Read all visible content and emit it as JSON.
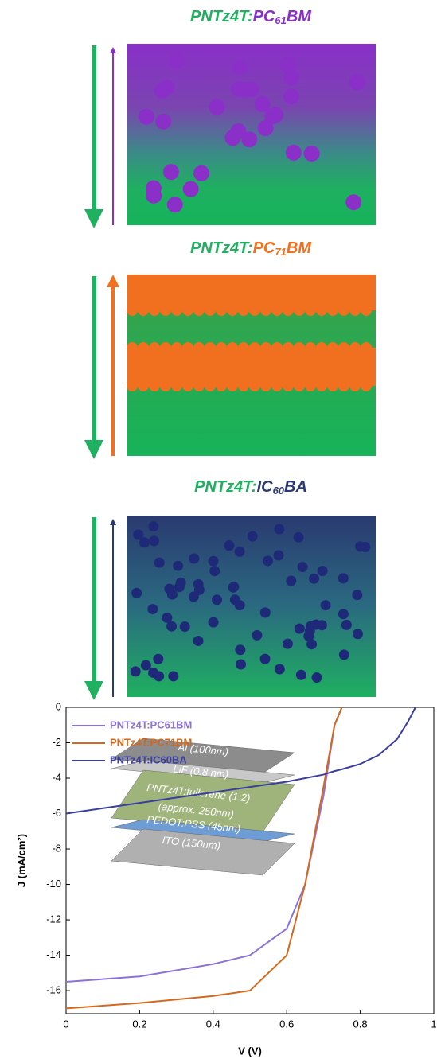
{
  "panels": [
    {
      "donor": "PNTz4T:",
      "acceptor": "PC",
      "sub": "61",
      "suffix": "BM"
    },
    {
      "donor": "PNTz4T:",
      "acceptor": "PC",
      "sub": "71",
      "suffix": "BM"
    },
    {
      "donor": "PNTz4T:",
      "acceptor": "IC",
      "sub": "60",
      "suffix": "BA"
    }
  ],
  "inset": {
    "layers": [
      "Al (100nm)",
      "LiF (0.8 nm)",
      "PNTz4T:fullerene (1:2)",
      "(approx. 250nm)",
      "PEDOT:PSS (45nm)",
      "ITO (150nm)"
    ]
  },
  "chart_data": {
    "type": "line",
    "x_label": "V (V)",
    "y_label": "J (mA/cm²)",
    "x": [
      0,
      0.2,
      0.4,
      0.5,
      0.6,
      0.65,
      0.7,
      0.73,
      0.75,
      0.8,
      0.85,
      0.9,
      0.93,
      0.95
    ],
    "series": [
      {
        "name": "PNTz4T:PC61BM",
        "color": "#8a72d8",
        "values": [
          -15.5,
          -15.2,
          -14.5,
          -14,
          -12.5,
          -10,
          -5,
          -1,
          0,
          null,
          null,
          null,
          null,
          null
        ]
      },
      {
        "name": "PNTz4T:PC71BM",
        "color": "#d2691e",
        "values": [
          -17,
          -16.7,
          -16.3,
          -16,
          -14,
          -10,
          -4.5,
          -1,
          0,
          null,
          null,
          null,
          null,
          null
        ]
      },
      {
        "name": "PNTz4T:IC60BA",
        "color": "#3a3ea0",
        "values": [
          -6,
          -5.4,
          -4.8,
          -4.5,
          -4.2,
          -4,
          -3.8,
          -3.6,
          -3.5,
          -3.2,
          -2.7,
          -1.8,
          -0.8,
          0
        ]
      }
    ],
    "xlim": [
      0,
      1
    ],
    "ylim": [
      -17.3,
      0
    ],
    "xticks": [
      0,
      0.2,
      0.4,
      0.6,
      0.8,
      1
    ],
    "yticks": [
      0,
      -2,
      -4,
      -6,
      -8,
      -10,
      -12,
      -14,
      -16
    ],
    "legend": "upper-left"
  }
}
